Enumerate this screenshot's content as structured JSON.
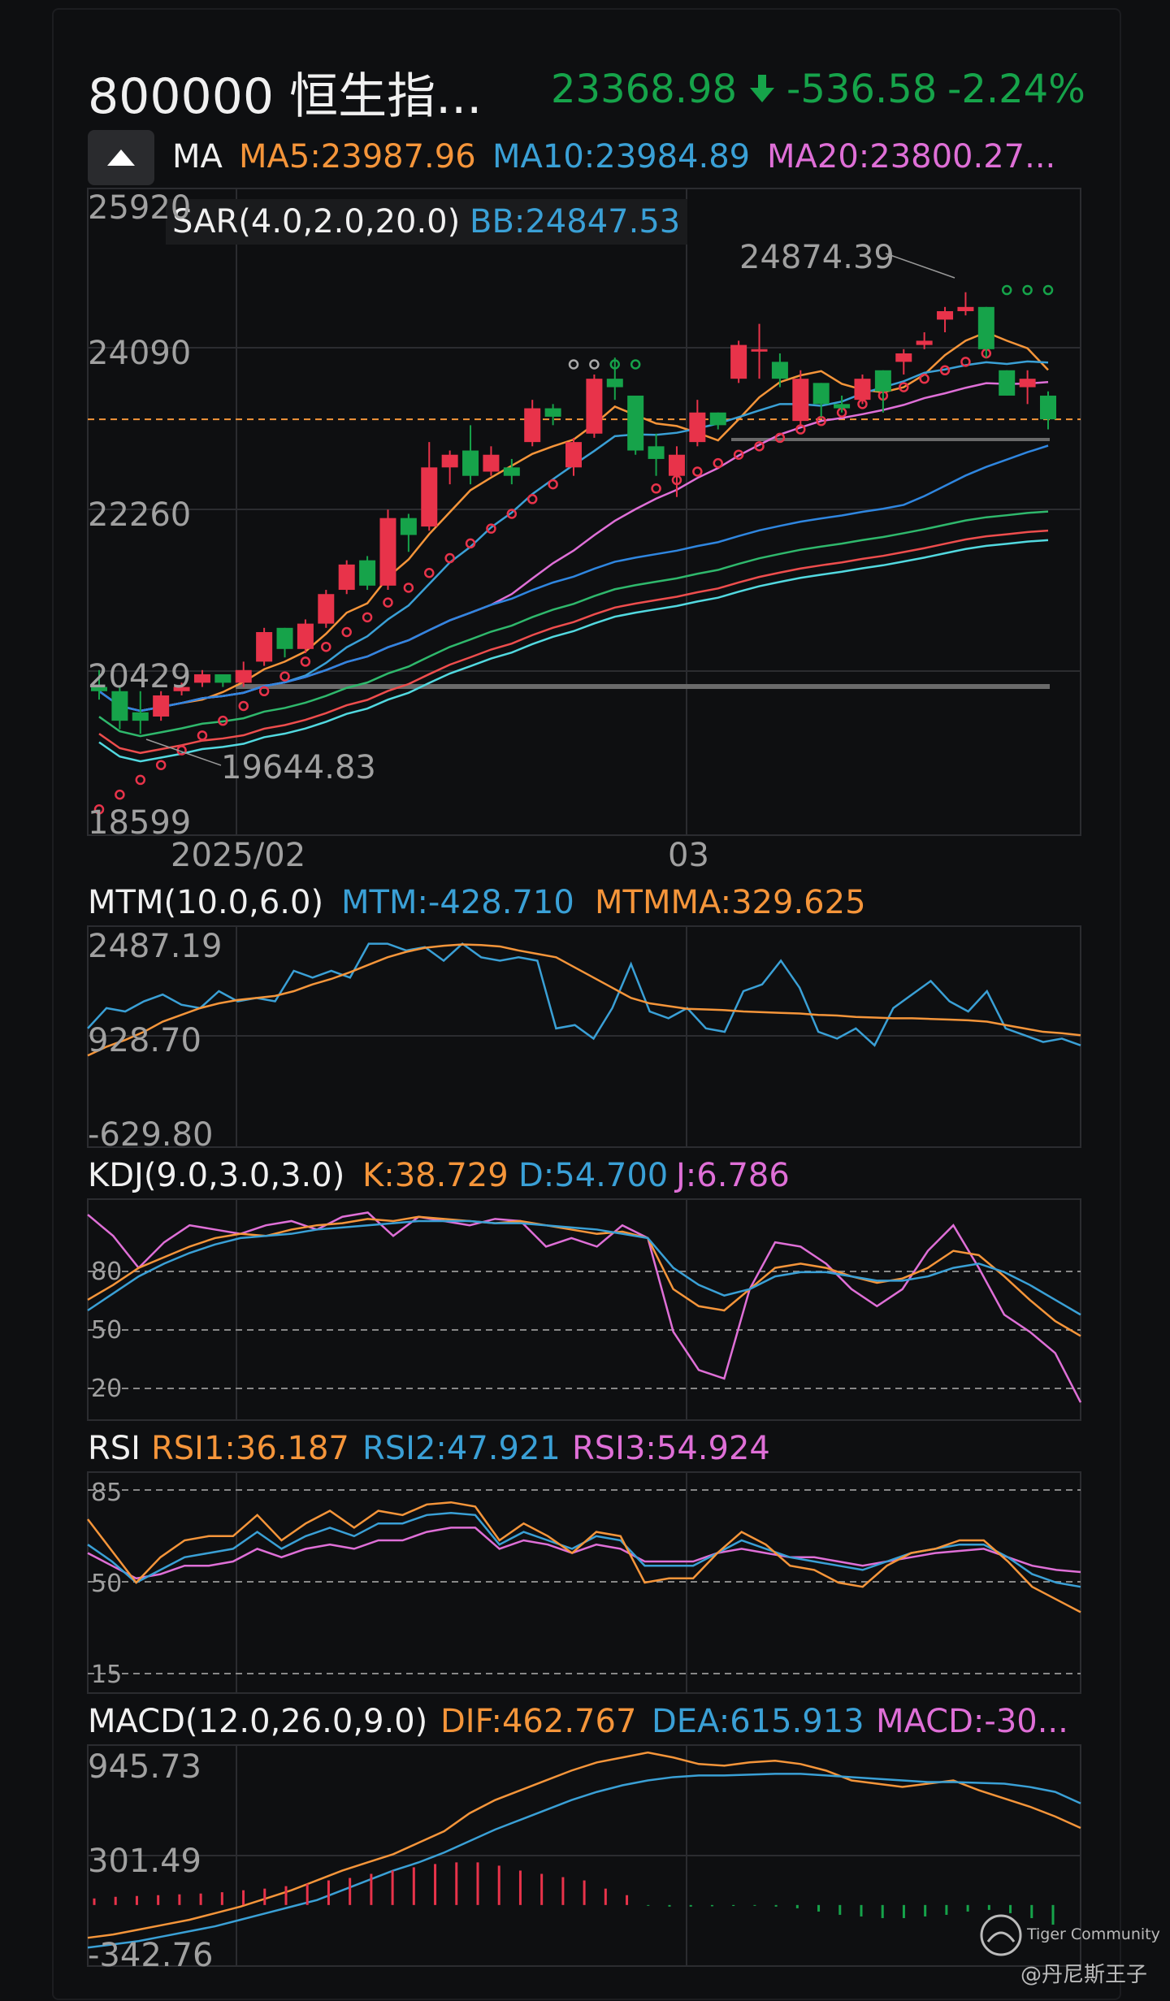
{
  "header": {
    "symbol": "800000 恒生指...",
    "price": "23368.98",
    "change": "-536.58",
    "change_pct": "-2.24%",
    "down_arrow_icon": "arrow-down-icon"
  },
  "ma_row": {
    "toggle_icon": "chevron-up-icon",
    "label": "MA",
    "ma5": "MA5:23987.96",
    "ma10": "MA10:23984.89",
    "ma20": "MA20:23800.27..."
  },
  "sar_row": {
    "sar": "SAR(4.0,2.0,20.0)",
    "bb": "BB:24847.53"
  },
  "price_panel": {
    "ticks": [
      "25920",
      "24090",
      "22260",
      "20429",
      "18599"
    ],
    "x_ticks": [
      "2025/02",
      "03"
    ],
    "high_label": "24874.39",
    "low_label": "19644.83"
  },
  "mtm_panel": {
    "title": "MTM(10.0,6.0)",
    "mtm": "MTM:-428.710",
    "mtmma": "MTMMA:329.625",
    "ticks": [
      "2487.19",
      "928.70",
      "-629.80"
    ]
  },
  "kdj_panel": {
    "title": "KDJ(9.0,3.0,3.0)",
    "k": "K:38.729",
    "d": "D:54.700",
    "j": "J:6.786",
    "ticks": [
      "80",
      "50",
      "20"
    ]
  },
  "rsi_panel": {
    "title": "RSI",
    "rsi1": "RSI1:36.187",
    "rsi2": "RSI2:47.921",
    "rsi3": "RSI3:54.924",
    "ticks": [
      "85",
      "50",
      "15"
    ]
  },
  "macd_panel": {
    "title": "MACD(12.0,26.0,9.0)",
    "dif": "DIF:462.767",
    "dea": "DEA:615.913",
    "macd": "MACD:-30...",
    "ticks": [
      "945.73",
      "301.49",
      "-342.76"
    ]
  },
  "watermark": {
    "brand": "Tiger Community",
    "user": "@丹尼斯王子"
  },
  "colors": {
    "up": "#e8334a",
    "down": "#16a34a",
    "orange": "#f5953a",
    "blue": "#3aa0d6",
    "pink": "#df6fd7"
  },
  "chart_data": [
    {
      "type": "candlestick",
      "title": "800000 恒生指...",
      "ylim": [
        18599,
        25920
      ],
      "candles": [
        {
          "o": 20200,
          "h": 20400,
          "l": 20050,
          "c": 20150
        },
        {
          "o": 20150,
          "h": 20200,
          "l": 19700,
          "c": 19800
        },
        {
          "o": 19900,
          "h": 20150,
          "l": 19644.83,
          "c": 19800
        },
        {
          "o": 19850,
          "h": 20150,
          "l": 19800,
          "c": 20100
        },
        {
          "o": 20150,
          "h": 20250,
          "l": 20100,
          "c": 20200
        },
        {
          "o": 20250,
          "h": 20400,
          "l": 20200,
          "c": 20350
        },
        {
          "o": 20350,
          "h": 20350,
          "l": 20200,
          "c": 20250
        },
        {
          "o": 20250,
          "h": 20500,
          "l": 20200,
          "c": 20400
        },
        {
          "o": 20500,
          "h": 20900,
          "l": 20450,
          "c": 20850
        },
        {
          "o": 20900,
          "h": 20900,
          "l": 20550,
          "c": 20650
        },
        {
          "o": 20650,
          "h": 21000,
          "l": 20600,
          "c": 20950
        },
        {
          "o": 20950,
          "h": 21350,
          "l": 20900,
          "c": 21300
        },
        {
          "o": 21350,
          "h": 21700,
          "l": 21300,
          "c": 21650
        },
        {
          "o": 21700,
          "h": 21750,
          "l": 21350,
          "c": 21400
        },
        {
          "o": 21400,
          "h": 22300,
          "l": 21350,
          "c": 22200
        },
        {
          "o": 22200,
          "h": 22250,
          "l": 21800,
          "c": 22000
        },
        {
          "o": 22100,
          "h": 23100,
          "l": 22050,
          "c": 22800
        },
        {
          "o": 22800,
          "h": 23000,
          "l": 22600,
          "c": 22950
        },
        {
          "o": 23000,
          "h": 23300,
          "l": 22600,
          "c": 22700
        },
        {
          "o": 22750,
          "h": 23050,
          "l": 22700,
          "c": 22950
        },
        {
          "o": 22800,
          "h": 22900,
          "l": 22600,
          "c": 22700
        },
        {
          "o": 23100,
          "h": 23600,
          "l": 23050,
          "c": 23500
        },
        {
          "o": 23500,
          "h": 23550,
          "l": 23300,
          "c": 23400
        },
        {
          "o": 22800,
          "h": 23150,
          "l": 22700,
          "c": 23100
        },
        {
          "o": 23200,
          "h": 23900,
          "l": 23150,
          "c": 23850
        },
        {
          "o": 23850,
          "h": 24100,
          "l": 23600,
          "c": 23750
        },
        {
          "o": 23650,
          "h": 23650,
          "l": 22950,
          "c": 23000
        },
        {
          "o": 23050,
          "h": 23200,
          "l": 22700,
          "c": 22900
        },
        {
          "o": 22700,
          "h": 23050,
          "l": 22450,
          "c": 22950
        },
        {
          "o": 23100,
          "h": 23600,
          "l": 23050,
          "c": 23450
        },
        {
          "o": 23450,
          "h": 23450,
          "l": 23250,
          "c": 23300
        },
        {
          "o": 23850,
          "h": 24300,
          "l": 23800,
          "c": 24250
        },
        {
          "o": 24200,
          "h": 24500,
          "l": 23850,
          "c": 24200
        },
        {
          "o": 24050,
          "h": 24150,
          "l": 23750,
          "c": 23850
        },
        {
          "o": 23350,
          "h": 23950,
          "l": 23300,
          "c": 23850
        },
        {
          "o": 23800,
          "h": 23800,
          "l": 23400,
          "c": 23550
        },
        {
          "o": 23550,
          "h": 23650,
          "l": 23450,
          "c": 23500
        },
        {
          "o": 23600,
          "h": 23900,
          "l": 23550,
          "c": 23850
        },
        {
          "o": 23950,
          "h": 23950,
          "l": 23450,
          "c": 23700
        },
        {
          "o": 24050,
          "h": 24200,
          "l": 23900,
          "c": 24150
        },
        {
          "o": 24250,
          "h": 24400,
          "l": 24200,
          "c": 24300
        },
        {
          "o": 24550,
          "h": 24700,
          "l": 24400,
          "c": 24650
        },
        {
          "o": 24650,
          "h": 24874.39,
          "l": 24600,
          "c": 24700
        },
        {
          "o": 24700,
          "h": 24700,
          "l": 24100,
          "c": 24200
        },
        {
          "o": 23950,
          "h": 23950,
          "l": 23650,
          "c": 23650
        },
        {
          "o": 23750,
          "h": 23950,
          "l": 23550,
          "c": 23850
        },
        {
          "o": 23650,
          "h": 23700,
          "l": 23250,
          "c": 23368.98
        }
      ]
    },
    {
      "type": "line",
      "title": "MTM(10.0,6.0)",
      "ylim": [
        -629.8,
        2487.19
      ]
    },
    {
      "type": "line",
      "title": "KDJ(9.0,3.0,3.0)",
      "ylim": [
        0,
        100
      ]
    },
    {
      "type": "line",
      "title": "RSI",
      "ylim": [
        0,
        100
      ]
    },
    {
      "type": "bar",
      "title": "MACD(12.0,26.0,9.0)",
      "ylim": [
        -342.76,
        945.73
      ]
    }
  ]
}
